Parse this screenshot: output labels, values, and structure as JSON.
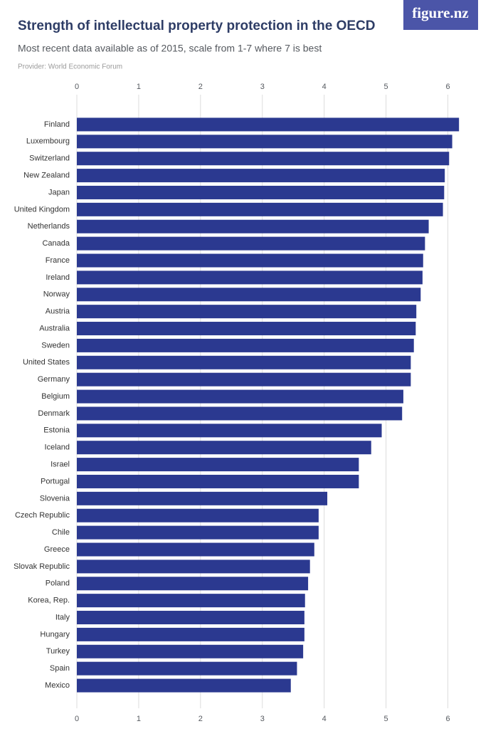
{
  "chart_data": {
    "type": "bar",
    "orientation": "horizontal",
    "title": "Strength of intellectual property protection in the OECD",
    "subtitle": "Most recent data available as of 2015, scale from 1-7 where 7 is best",
    "provider": "Provider: World Economic Forum",
    "logo": "figure.nz",
    "categories": [
      "Finland",
      "Luxembourg",
      "Switzerland",
      "New Zealand",
      "Japan",
      "United Kingdom",
      "Netherlands",
      "Canada",
      "France",
      "Ireland",
      "Norway",
      "Austria",
      "Australia",
      "Sweden",
      "United States",
      "Germany",
      "Belgium",
      "Denmark",
      "Estonia",
      "Iceland",
      "Israel",
      "Portugal",
      "Slovenia",
      "Czech Republic",
      "Chile",
      "Greece",
      "Slovak Republic",
      "Poland",
      "Korea, Rep.",
      "Italy",
      "Hungary",
      "Turkey",
      "Spain",
      "Mexico"
    ],
    "values": [
      6.18,
      6.07,
      6.02,
      5.95,
      5.94,
      5.92,
      5.69,
      5.63,
      5.6,
      5.59,
      5.56,
      5.49,
      5.48,
      5.45,
      5.4,
      5.4,
      5.28,
      5.26,
      4.93,
      4.76,
      4.56,
      4.56,
      4.05,
      3.91,
      3.91,
      3.84,
      3.77,
      3.74,
      3.69,
      3.68,
      3.68,
      3.66,
      3.56,
      3.46
    ],
    "color": "#2b3990",
    "xlim": [
      0,
      6.5
    ],
    "xticks": [
      0,
      1,
      2,
      3,
      4,
      5,
      6
    ],
    "grid": true
  }
}
